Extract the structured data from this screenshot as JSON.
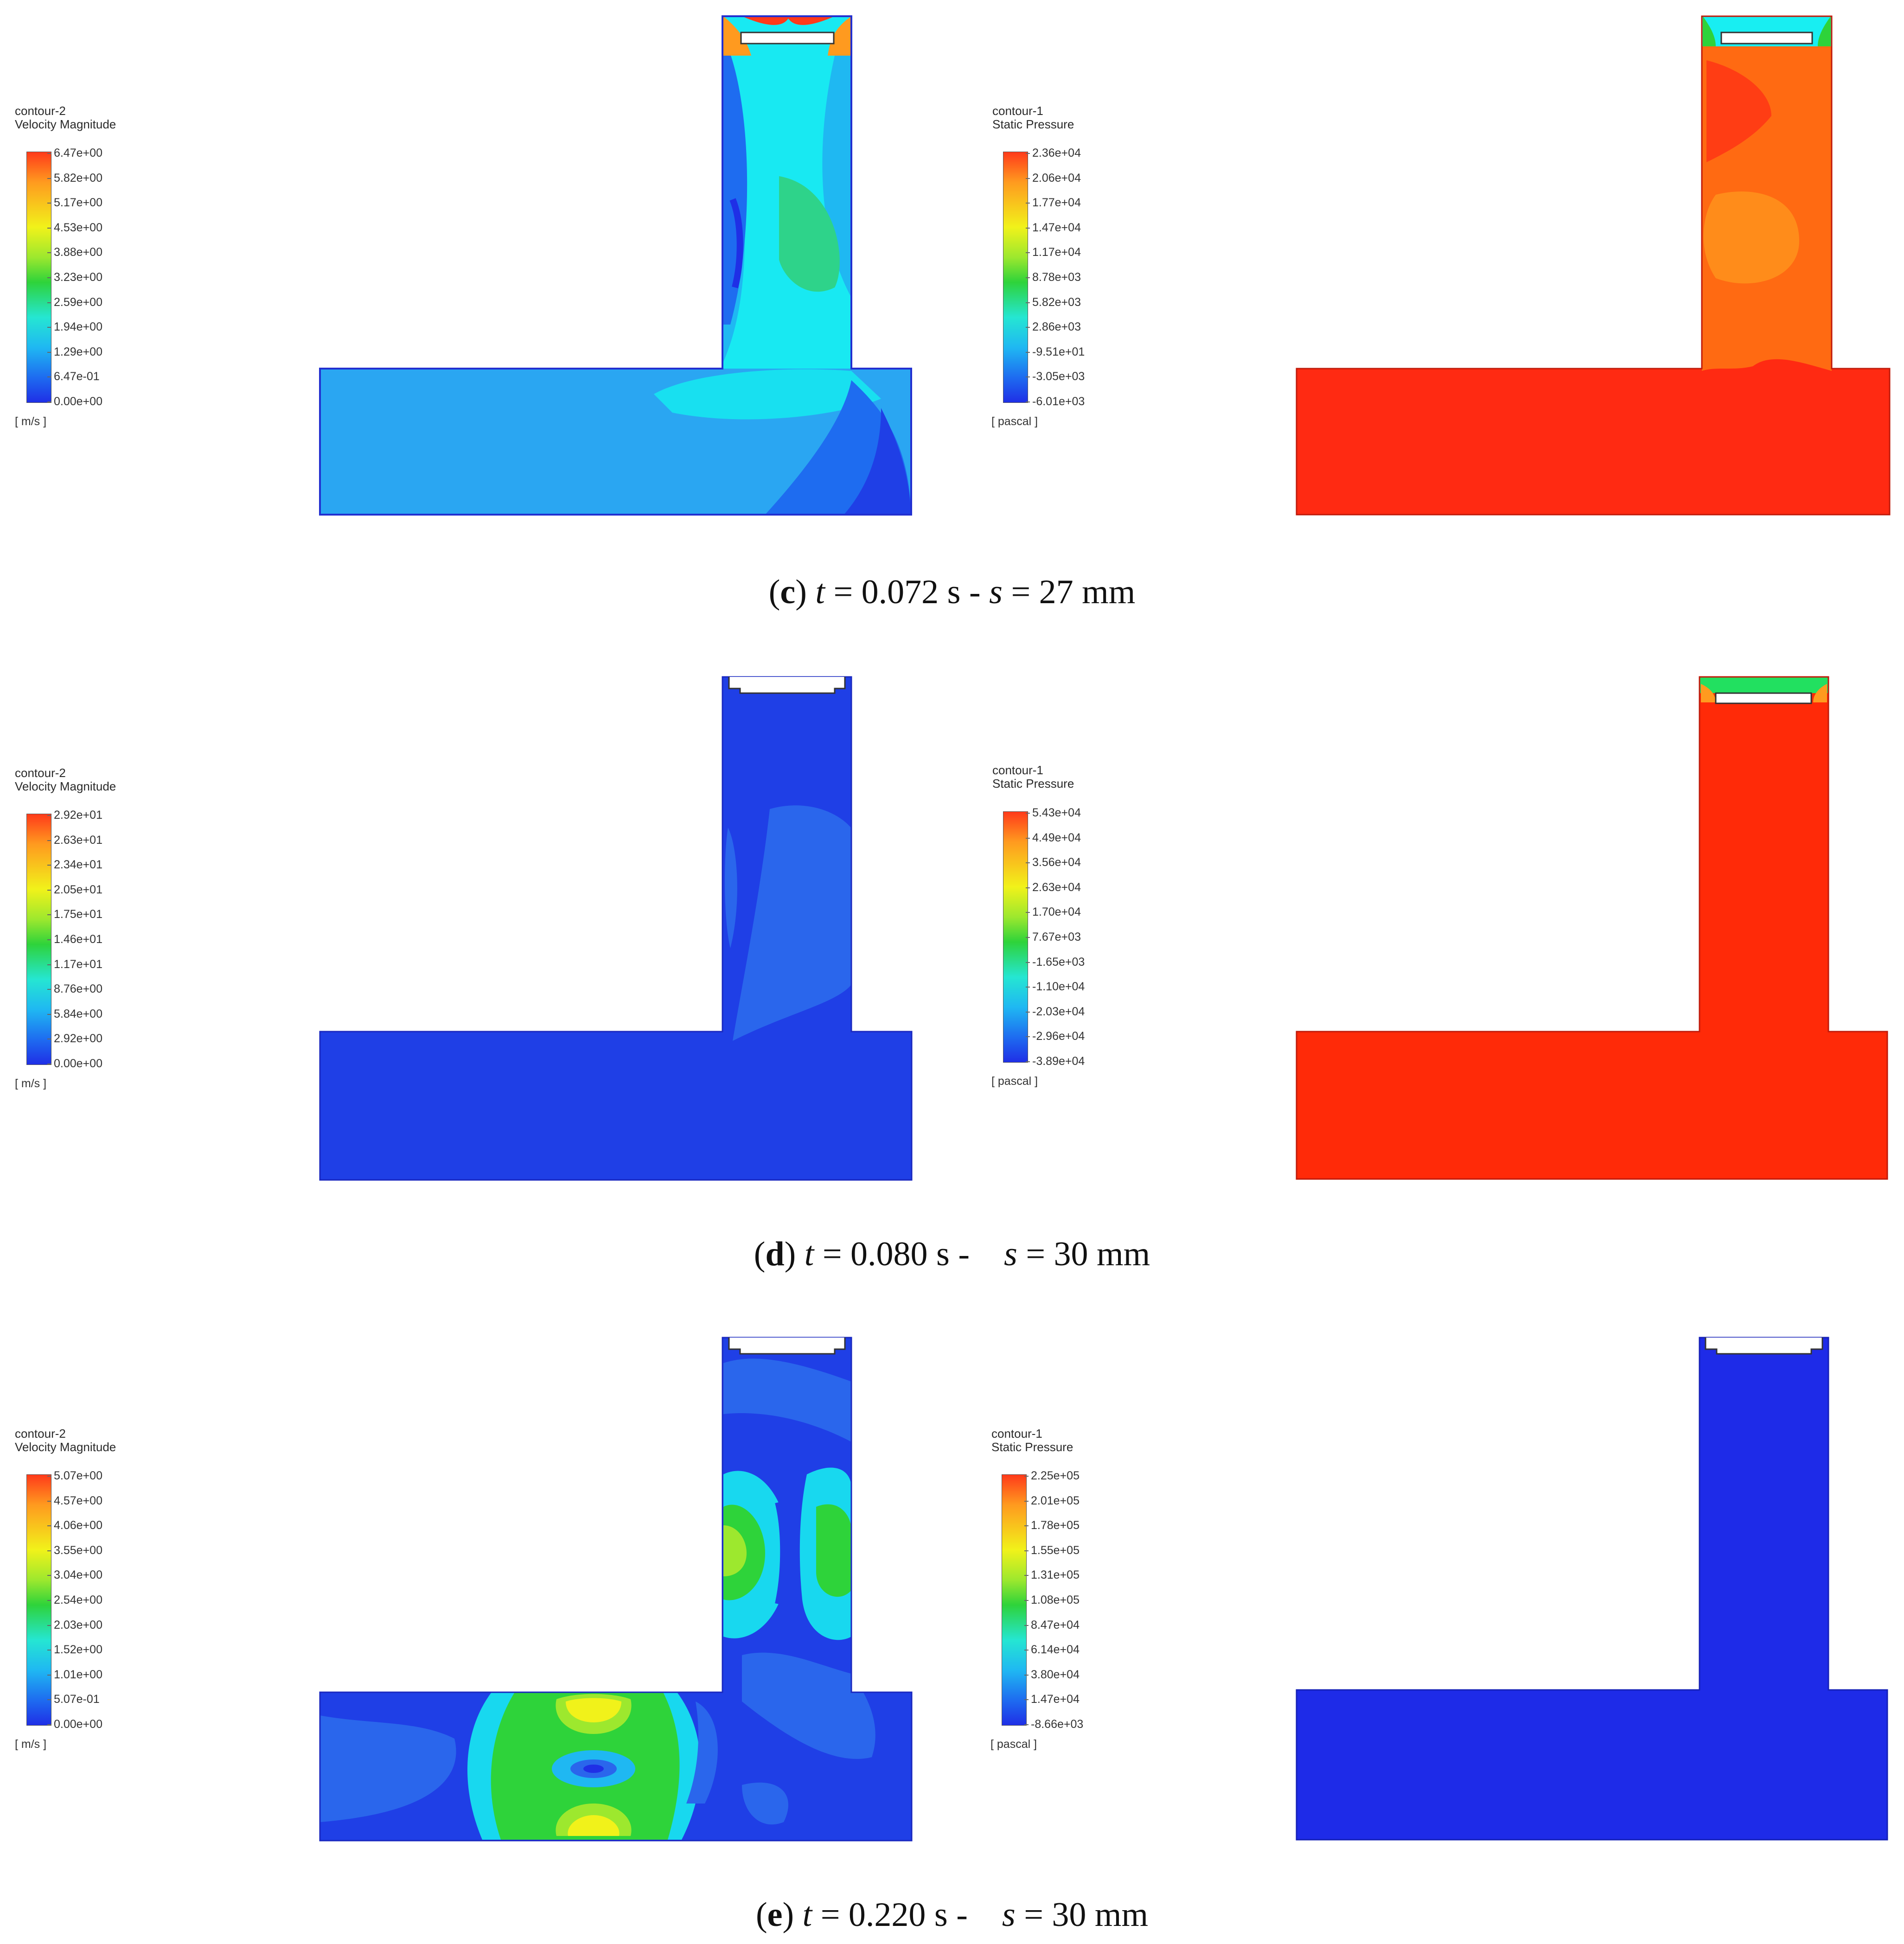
{
  "panels": [
    {
      "letter": "c",
      "caption": {
        "pre": "(",
        "letter": "c",
        "mid": ") ",
        "t_var": "t",
        "t_text": " = 0.072 s - ",
        "s_var": "s",
        "s_text": " = 27 mm"
      },
      "velocity_legend": {
        "name": "contour-2",
        "title": "Velocity Magnitude",
        "unit": "[ m/s ]",
        "ticks": [
          "6.47e+00",
          "5.82e+00",
          "5.17e+00",
          "4.53e+00",
          "3.88e+00",
          "3.23e+00",
          "2.59e+00",
          "1.94e+00",
          "1.29e+00",
          "6.47e-01",
          "0.00e+00"
        ]
      },
      "pressure_legend": {
        "name": "contour-1",
        "title": "Static Pressure",
        "unit": "[ pascal ]",
        "ticks": [
          "2.36e+04",
          "2.06e+04",
          "1.77e+04",
          "1.47e+04",
          "1.17e+04",
          "8.78e+03",
          "5.82e+03",
          "2.86e+03",
          "-9.51e+01",
          "-3.05e+03",
          "-6.01e+03"
        ]
      }
    },
    {
      "letter": "d",
      "caption": {
        "pre": "(",
        "letter": "d",
        "mid": ") ",
        "t_var": "t",
        "t_text": " = 0.080 s -    ",
        "s_var": "s",
        "s_text": " = 30 mm"
      },
      "velocity_legend": {
        "name": "contour-2",
        "title": "Velocity Magnitude",
        "unit": "[ m/s ]",
        "ticks": [
          "2.92e+01",
          "2.63e+01",
          "2.34e+01",
          "2.05e+01",
          "1.75e+01",
          "1.46e+01",
          "1.17e+01",
          "8.76e+00",
          "5.84e+00",
          "2.92e+00",
          "0.00e+00"
        ]
      },
      "pressure_legend": {
        "name": "contour-1",
        "title": "Static Pressure",
        "unit": "[ pascal ]",
        "ticks": [
          "5.43e+04",
          "4.49e+04",
          "3.56e+04",
          "2.63e+04",
          "1.70e+04",
          "7.67e+03",
          "-1.65e+03",
          "-1.10e+04",
          "-2.03e+04",
          "-2.96e+04",
          "-3.89e+04"
        ]
      }
    },
    {
      "letter": "e",
      "caption": {
        "pre": "(",
        "letter": "e",
        "mid": ") ",
        "t_var": "t",
        "t_text": " = 0.220 s -    ",
        "s_var": "s",
        "s_text": " = 30 mm"
      },
      "velocity_legend": {
        "name": "contour-2",
        "title": "Velocity Magnitude",
        "unit": "[ m/s ]",
        "ticks": [
          "5.07e+00",
          "4.57e+00",
          "4.06e+00",
          "3.55e+00",
          "3.04e+00",
          "2.54e+00",
          "2.03e+00",
          "1.52e+00",
          "1.01e+00",
          "5.07e-01",
          "0.00e+00"
        ]
      },
      "pressure_legend": {
        "name": "contour-1",
        "title": "Static Pressure",
        "unit": "[ pascal ]",
        "ticks": [
          "2.25e+05",
          "2.01e+05",
          "1.78e+05",
          "1.55e+05",
          "1.31e+05",
          "1.08e+05",
          "8.47e+04",
          "6.14e+04",
          "3.80e+04",
          "1.47e+04",
          "-8.66e+03"
        ]
      }
    }
  ],
  "colors": {
    "colormap": [
      "#1f2fe6",
      "#1e6cf0",
      "#1fb8f2",
      "#25e6d2",
      "#2ed33a",
      "#9de82e",
      "#f1f21a",
      "#ff9a1f",
      "#ff3a1a"
    ],
    "deep_blue": "#1f3fe6",
    "light_blue": "#2aa7f0",
    "cyan": "#18eef2",
    "pressure_red": "#ff2a12",
    "pressure_orange": "#ff6a12"
  }
}
